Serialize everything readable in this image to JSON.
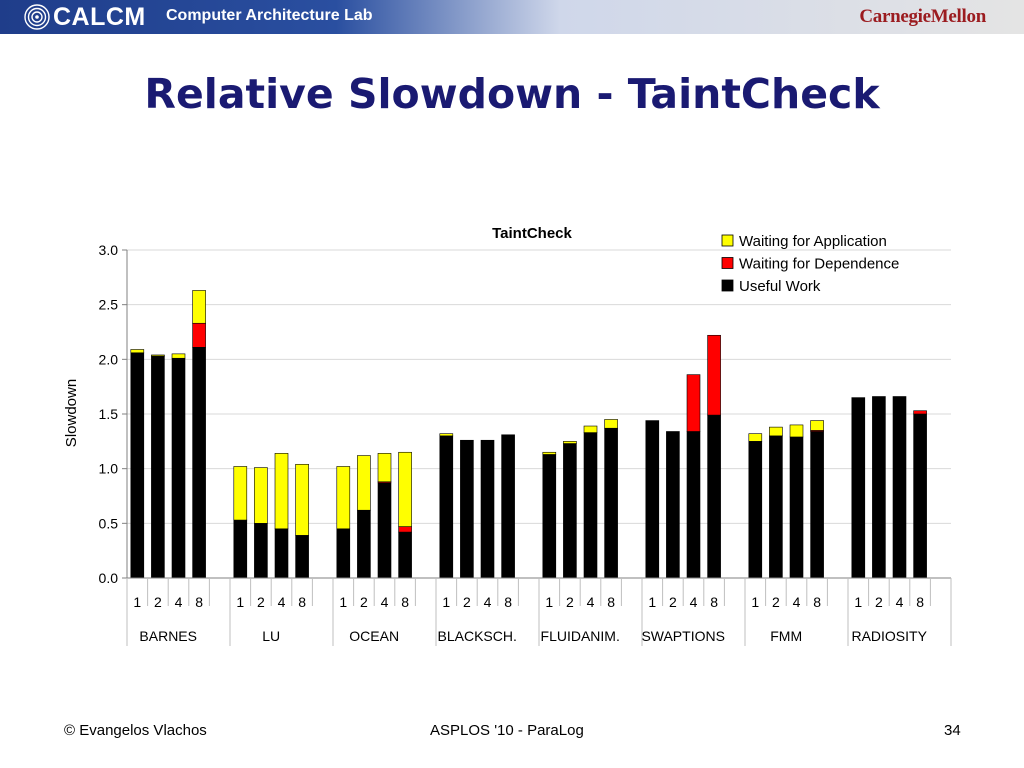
{
  "header": {
    "logo_name": "CALCM",
    "lab_name": "Computer Architecture Lab",
    "university": "CarnegieMellon"
  },
  "slide": {
    "title": "Relative Slowdown - TaintCheck"
  },
  "footer": {
    "author": "© Evangelos Vlachos",
    "venue": "ASPLOS '10 - ParaLog",
    "page": "34"
  },
  "colors": {
    "banner": "#1f3d8a",
    "title": "#1a1a72",
    "useful_work": "#000000",
    "waiting_dependence": "#ff0000",
    "waiting_application": "#ffff00"
  },
  "chart_data": {
    "type": "bar",
    "stacked": true,
    "title": "TaintCheck",
    "ylabel": "Slowdown",
    "ylim": [
      0,
      3
    ],
    "yticks": [
      "0.0",
      "0.5",
      "1.0",
      "1.5",
      "2.0",
      "2.5",
      "3.0"
    ],
    "grid": true,
    "legend": "top-right",
    "groups": [
      "BARNES",
      "LU",
      "OCEAN",
      "BLACKSCH.",
      "FLUIDANIM.",
      "SWAPTIONS",
      "FMM",
      "RADIOSITY"
    ],
    "threads": [
      "1",
      "2",
      "4",
      "8"
    ],
    "series": [
      {
        "name": "Useful Work",
        "color": "#000000",
        "values": [
          [
            2.06,
            2.03,
            2.01,
            2.11
          ],
          [
            0.53,
            0.5,
            0.45,
            0.39
          ],
          [
            0.45,
            0.62,
            0.87,
            0.42
          ],
          [
            1.3,
            1.26,
            1.26,
            1.31
          ],
          [
            1.13,
            1.23,
            1.33,
            1.37
          ],
          [
            1.44,
            1.34,
            1.34,
            1.49
          ],
          [
            1.25,
            1.3,
            1.29,
            1.34
          ],
          [
            1.65,
            1.66,
            1.66,
            1.5
          ]
        ]
      },
      {
        "name": "Waiting for Dependence",
        "color": "#ff0000",
        "values": [
          [
            0.0,
            0.0,
            0.0,
            0.22
          ],
          [
            0.0,
            0.0,
            0.0,
            0.0
          ],
          [
            0.0,
            0.0,
            0.01,
            0.05
          ],
          [
            0.0,
            0.0,
            0.0,
            0.0
          ],
          [
            0.0,
            0.0,
            0.0,
            0.0
          ],
          [
            0.0,
            0.0,
            0.52,
            0.73
          ],
          [
            0.0,
            0.0,
            0.0,
            0.01
          ],
          [
            0.0,
            0.0,
            0.0,
            0.03
          ]
        ]
      },
      {
        "name": "Waiting for Application",
        "color": "#ffff00",
        "values": [
          [
            0.03,
            0.01,
            0.04,
            0.3
          ],
          [
            0.49,
            0.51,
            0.69,
            0.65
          ],
          [
            0.57,
            0.5,
            0.26,
            0.68
          ],
          [
            0.02,
            0.0,
            0.0,
            0.0
          ],
          [
            0.02,
            0.02,
            0.06,
            0.08
          ],
          [
            0.0,
            0.0,
            0.0,
            0.0
          ],
          [
            0.07,
            0.08,
            0.11,
            0.09
          ],
          [
            0.0,
            0.0,
            0.0,
            0.0
          ]
        ]
      }
    ],
    "legend_order": [
      "Waiting for Application",
      "Waiting for Dependence",
      "Useful Work"
    ]
  }
}
